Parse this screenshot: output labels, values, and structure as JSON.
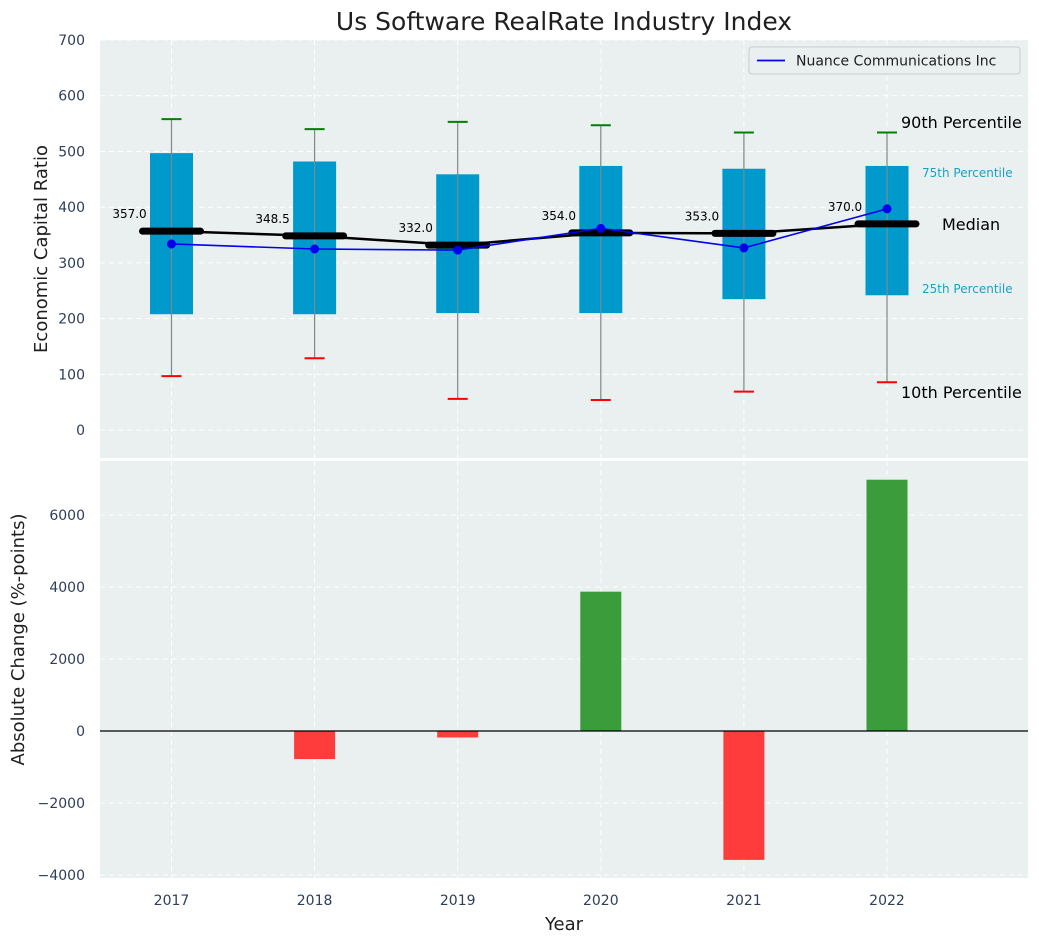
{
  "chart_data": [
    {
      "type": "box",
      "title": "Us Software RealRate Industry Index",
      "ylabel": "Economic Capital Ratio",
      "ylim": [
        -50,
        700
      ],
      "yticks": [
        0,
        100,
        200,
        300,
        400,
        500,
        600,
        700
      ],
      "categories": [
        "2017",
        "2018",
        "2019",
        "2020",
        "2021",
        "2022"
      ],
      "boxes": [
        {
          "p10": 97,
          "p25": 208,
          "median": 357.0,
          "p75": 497,
          "p90": 558,
          "median_label": "357.0"
        },
        {
          "p10": 129,
          "p25": 208,
          "median": 348.5,
          "p75": 482,
          "p90": 540,
          "median_label": "348.5"
        },
        {
          "p10": 56,
          "p25": 210,
          "median": 332.0,
          "p75": 459,
          "p90": 553,
          "median_label": "332.0"
        },
        {
          "p10": 54,
          "p25": 210,
          "median": 354.0,
          "p75": 474,
          "p90": 547,
          "median_label": "354.0"
        },
        {
          "p10": 69,
          "p25": 235,
          "median": 353.0,
          "p75": 469,
          "p90": 534,
          "median_label": "353.0"
        },
        {
          "p10": 86,
          "p25": 242,
          "median": 370.0,
          "p75": 474,
          "p90": 534,
          "median_label": "370.0"
        }
      ],
      "series": [
        {
          "name": "Nuance Communications Inc",
          "values": [
            334,
            325,
            323,
            362,
            327,
            397
          ],
          "color": "#0000ee"
        }
      ],
      "annotations": {
        "p90": "90th Percentile",
        "p75": "75th Percentile",
        "median": "Median",
        "p25": "25th Percentile",
        "p10": "10th Percentile"
      },
      "colors": {
        "box": "#0099cc",
        "p90_cap": "#008000",
        "p10_cap": "#ff0000",
        "median": "#000000",
        "background": "#eaeff0"
      },
      "grid": true,
      "legend_position": "top-right"
    },
    {
      "type": "bar",
      "xlabel": "Year",
      "ylabel": "Absolute Change (%-points)",
      "ylim": [
        -4000,
        7500
      ],
      "yticks": [
        -4000,
        -2000,
        0,
        2000,
        4000,
        6000
      ],
      "ytick_labels": [
        "−4000",
        "−2000",
        "0",
        "2000",
        "4000",
        "6000"
      ],
      "categories": [
        "2017",
        "2018",
        "2019",
        "2020",
        "2021",
        "2022"
      ],
      "values": [
        0,
        -780,
        -180,
        3870,
        -3580,
        6980
      ],
      "colors": {
        "positive": "#3a9c3a",
        "negative": "#ff3c3c",
        "background": "#eaeff0"
      },
      "grid": true
    }
  ]
}
